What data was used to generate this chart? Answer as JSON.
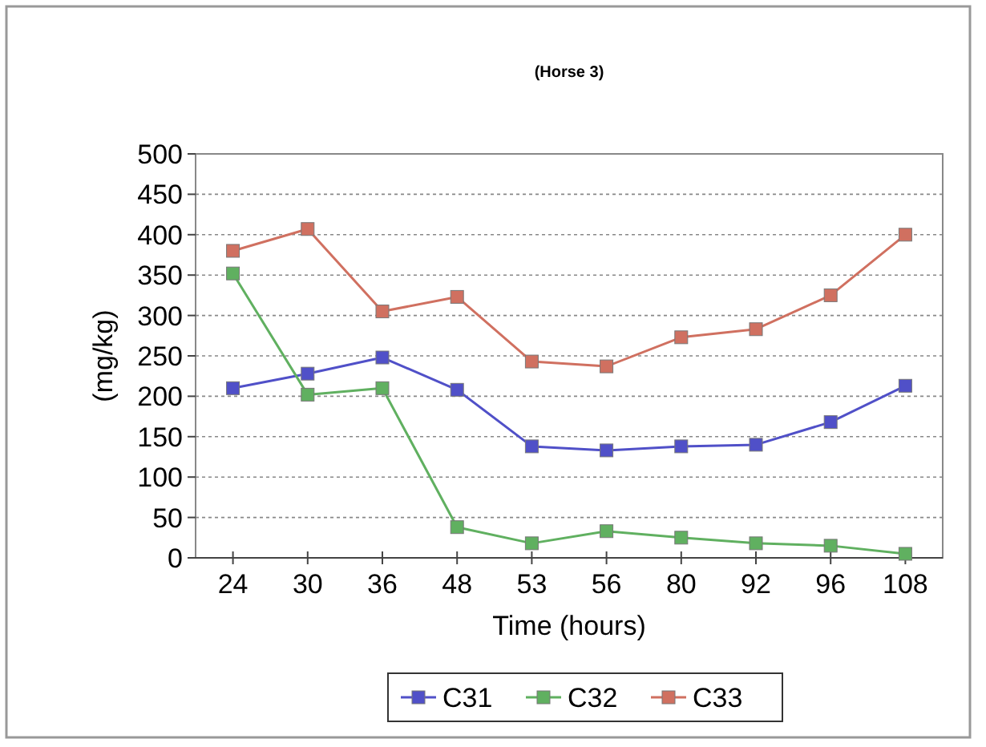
{
  "chart_data": {
    "type": "line",
    "title": "(Horse 3)",
    "xlabel": "Time (hours)",
    "ylabel": "(mg/kg)",
    "categories": [
      "24",
      "30",
      "36",
      "48",
      "53",
      "56",
      "80",
      "92",
      "96",
      "108"
    ],
    "series": [
      {
        "name": "C31",
        "color": "#5050c8",
        "values": [
          210,
          228,
          248,
          208,
          138,
          133,
          138,
          140,
          168,
          213
        ]
      },
      {
        "name": "C32",
        "color": "#60b060",
        "values": [
          352,
          202,
          210,
          38,
          18,
          33,
          25,
          18,
          15,
          5
        ]
      },
      {
        "name": "C33",
        "color": "#d07060",
        "values": [
          380,
          407,
          305,
          323,
          243,
          237,
          273,
          283,
          325,
          400
        ]
      }
    ],
    "ylim": [
      0,
      500
    ],
    "yticks": [
      0,
      50,
      100,
      150,
      200,
      250,
      300,
      350,
      400,
      450,
      500
    ],
    "grid": "y",
    "legend": "bottom",
    "marker": "square",
    "line_style": "solid"
  }
}
